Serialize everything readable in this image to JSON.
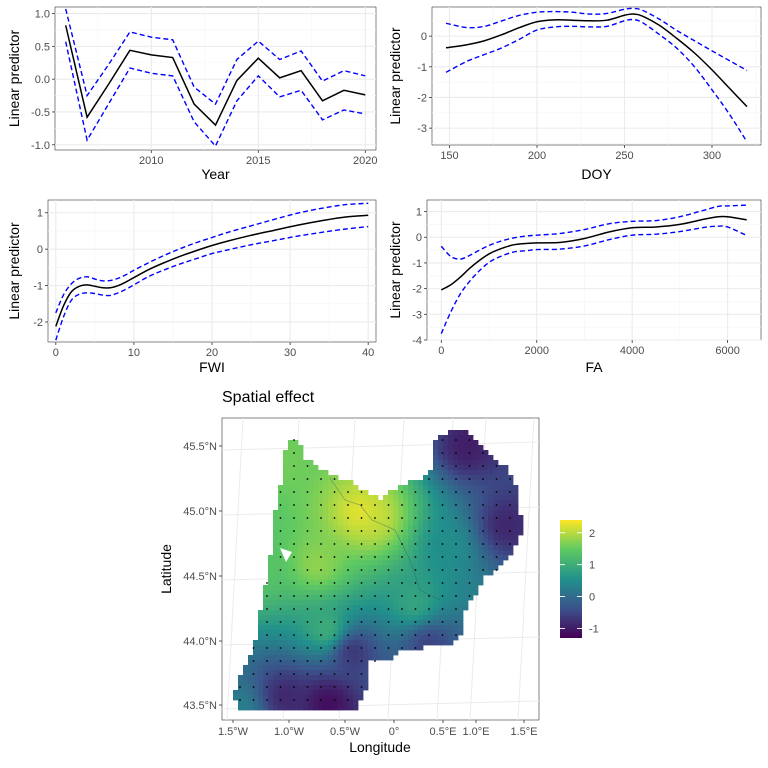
{
  "colors": {
    "estimate": "#000000",
    "interval": "#0000ff",
    "grid_major": "#ebebeb",
    "grid_minor": "#f4f4f4",
    "panel_border": "#333333",
    "viridis": [
      "#440154",
      "#3b528b",
      "#21918c",
      "#5ec962",
      "#fde725"
    ]
  },
  "chart_data": [
    {
      "type": "line",
      "panel": "year",
      "xlabel": "Year",
      "ylabel": "Linear predictor",
      "xlim": [
        2005.5,
        2020.5
      ],
      "ylim": [
        -1.08,
        1.1
      ],
      "xticks": [
        2010,
        2015,
        2020
      ],
      "yticks": [
        -1.0,
        -0.5,
        0.0,
        0.5,
        1.0
      ],
      "ytick_labels": [
        "-1.0",
        "-0.5",
        "0.0",
        "0.5",
        "1.0"
      ],
      "x": [
        2006,
        2007,
        2008,
        2009,
        2010,
        2011,
        2012,
        2013,
        2014,
        2015,
        2016,
        2017,
        2018,
        2019,
        2020
      ],
      "series": [
        {
          "role": "estimate",
          "values": [
            0.82,
            -0.58,
            -0.08,
            0.44,
            0.37,
            0.33,
            -0.38,
            -0.7,
            -0.02,
            0.32,
            0.02,
            0.13,
            -0.33,
            -0.17,
            -0.24
          ]
        },
        {
          "role": "upper",
          "values": [
            1.07,
            -0.25,
            0.22,
            0.72,
            0.64,
            0.6,
            -0.12,
            -0.38,
            0.3,
            0.58,
            0.3,
            0.43,
            -0.03,
            0.13,
            0.05
          ]
        },
        {
          "role": "lower",
          "values": [
            0.57,
            -0.93,
            -0.38,
            0.17,
            0.09,
            0.05,
            -0.65,
            -1.02,
            -0.33,
            0.05,
            -0.27,
            -0.17,
            -0.62,
            -0.47,
            -0.53
          ]
        }
      ]
    },
    {
      "type": "line",
      "panel": "doy",
      "xlabel": "DOY",
      "ylabel": "Linear predictor",
      "xlim": [
        140,
        328
      ],
      "ylim": [
        -3.55,
        0.95
      ],
      "xticks": [
        150,
        200,
        250,
        300
      ],
      "yticks": [
        -3,
        -2,
        -1,
        0
      ],
      "ytick_labels": [
        "-3",
        "-2",
        "-1",
        "0"
      ],
      "x": [
        148,
        160,
        170,
        180,
        190,
        200,
        210,
        220,
        230,
        240,
        250,
        255,
        260,
        270,
        280,
        290,
        300,
        310,
        320
      ],
      "series": [
        {
          "role": "estimate",
          "values": [
            -0.38,
            -0.28,
            -0.15,
            0.05,
            0.28,
            0.47,
            0.53,
            0.52,
            0.5,
            0.52,
            0.68,
            0.72,
            0.66,
            0.35,
            -0.08,
            -0.55,
            -1.1,
            -1.7,
            -2.3
          ]
        },
        {
          "role": "upper",
          "values": [
            0.42,
            0.28,
            0.32,
            0.5,
            0.68,
            0.78,
            0.8,
            0.78,
            0.72,
            0.74,
            0.88,
            0.9,
            0.85,
            0.55,
            0.18,
            -0.15,
            -0.48,
            -0.8,
            -1.12
          ]
        },
        {
          "role": "lower",
          "values": [
            -1.18,
            -0.82,
            -0.6,
            -0.38,
            -0.1,
            0.2,
            0.3,
            0.32,
            0.3,
            0.32,
            0.5,
            0.54,
            0.45,
            0.05,
            -0.4,
            -1.0,
            -1.75,
            -2.55,
            -3.45
          ]
        }
      ]
    },
    {
      "type": "line",
      "panel": "fwi",
      "xlabel": "FWI",
      "ylabel": "Linear predictor",
      "xlim": [
        -1,
        41
      ],
      "ylim": [
        -2.55,
        1.35
      ],
      "xticks": [
        0,
        10,
        20,
        30,
        40
      ],
      "yticks": [
        -2,
        -1,
        0,
        1
      ],
      "ytick_labels": [
        "-2",
        "-1",
        "0",
        "1"
      ],
      "x": [
        0,
        1,
        2,
        3,
        4,
        5,
        6,
        7,
        8,
        9,
        10,
        12,
        14,
        16,
        18,
        20,
        22,
        25,
        28,
        31,
        34,
        37,
        40
      ],
      "series": [
        {
          "role": "estimate",
          "values": [
            -2.12,
            -1.55,
            -1.17,
            -1.02,
            -0.98,
            -1.02,
            -1.06,
            -1.06,
            -1.0,
            -0.9,
            -0.78,
            -0.55,
            -0.36,
            -0.19,
            -0.04,
            0.1,
            0.22,
            0.38,
            0.52,
            0.66,
            0.78,
            0.88,
            0.93
          ]
        },
        {
          "role": "upper",
          "values": [
            -1.75,
            -1.25,
            -0.95,
            -0.8,
            -0.76,
            -0.82,
            -0.87,
            -0.86,
            -0.8,
            -0.7,
            -0.58,
            -0.36,
            -0.16,
            0.02,
            0.18,
            0.32,
            0.46,
            0.64,
            0.82,
            0.99,
            1.12,
            1.22,
            1.26
          ]
        },
        {
          "role": "lower",
          "values": [
            -2.5,
            -1.85,
            -1.4,
            -1.24,
            -1.2,
            -1.22,
            -1.26,
            -1.27,
            -1.2,
            -1.1,
            -0.98,
            -0.74,
            -0.56,
            -0.4,
            -0.26,
            -0.12,
            -0.02,
            0.12,
            0.24,
            0.36,
            0.46,
            0.55,
            0.62
          ]
        }
      ]
    },
    {
      "type": "line",
      "panel": "fa",
      "xlabel": "FA",
      "ylabel": "Linear predictor",
      "xlim": [
        -300,
        6700
      ],
      "ylim": [
        -4.0,
        1.45
      ],
      "xticks": [
        0,
        2000,
        4000,
        6000
      ],
      "yticks": [
        -4,
        -3,
        -2,
        -1,
        0,
        1
      ],
      "ytick_labels": [
        "-4",
        "-3",
        "-2",
        "-1",
        "0",
        "1"
      ],
      "x": [
        0,
        200,
        400,
        600,
        800,
        1000,
        1200,
        1500,
        1800,
        2000,
        2500,
        3000,
        3500,
        4000,
        4500,
        5000,
        5500,
        5800,
        6000,
        6400
      ],
      "series": [
        {
          "role": "estimate",
          "values": [
            -2.05,
            -1.85,
            -1.55,
            -1.2,
            -0.9,
            -0.65,
            -0.48,
            -0.3,
            -0.24,
            -0.22,
            -0.2,
            -0.05,
            0.2,
            0.37,
            0.4,
            0.5,
            0.7,
            0.8,
            0.8,
            0.68
          ]
        },
        {
          "role": "upper",
          "values": [
            -0.35,
            -0.75,
            -0.85,
            -0.7,
            -0.5,
            -0.32,
            -0.18,
            -0.03,
            0.05,
            0.08,
            0.15,
            0.3,
            0.52,
            0.62,
            0.65,
            0.8,
            1.05,
            1.2,
            1.22,
            1.25
          ]
        },
        {
          "role": "lower",
          "values": [
            -3.75,
            -2.9,
            -2.2,
            -1.7,
            -1.3,
            -0.98,
            -0.78,
            -0.58,
            -0.52,
            -0.48,
            -0.46,
            -0.34,
            -0.1,
            0.08,
            0.12,
            0.22,
            0.38,
            0.43,
            0.4,
            0.07
          ]
        }
      ]
    },
    {
      "type": "heatmap",
      "panel": "spatial",
      "title": "Spatial effect",
      "xlabel": "Longitude",
      "ylabel": "Latitude",
      "lon_range": [
        -1.65,
        1.65
      ],
      "lat_range": [
        43.42,
        45.72
      ],
      "lon_ticks": [
        "1.5°W",
        "1.0°W",
        "0.5°W",
        "0°",
        "0.5°E",
        "1.0°E",
        "1.5°E"
      ],
      "lat_ticks": [
        "43.5°N",
        "44.0°N",
        "44.5°N",
        "45.0°N",
        "45.5°N"
      ],
      "legend": {
        "position": "right",
        "range": [
          -1.3,
          2.4
        ],
        "ticks": [
          2,
          1,
          0,
          -1
        ],
        "tick_labels": [
          "2",
          "1",
          "0",
          "-1"
        ]
      },
      "hotspots": [
        {
          "lon": -0.2,
          "lat": 45.0,
          "value": 2.3
        },
        {
          "lon": -0.05,
          "lat": 44.95,
          "value": 2.1
        },
        {
          "lon": -0.65,
          "lat": 44.6,
          "value": 1.8
        },
        {
          "lon": -1.05,
          "lat": 45.4,
          "value": 1.6
        },
        {
          "lon": -1.3,
          "lat": 44.55,
          "value": 1.4
        },
        {
          "lon": -0.55,
          "lat": 44.1,
          "value": 1.1
        },
        {
          "lon": 0.35,
          "lat": 44.3,
          "value": 0.9
        },
        {
          "lon": 0.7,
          "lat": 44.75,
          "value": 0.5
        },
        {
          "lon": -0.55,
          "lat": 43.55,
          "value": -1.2
        },
        {
          "lon": -1.0,
          "lat": 43.6,
          "value": -0.9
        },
        {
          "lon": 0.9,
          "lat": 45.5,
          "value": -1.0
        },
        {
          "lon": 1.3,
          "lat": 44.9,
          "value": -0.9
        },
        {
          "lon": -0.3,
          "lat": 43.95,
          "value": -0.8
        },
        {
          "lon": 0.5,
          "lat": 44.0,
          "value": -0.6
        },
        {
          "lon": -1.45,
          "lat": 43.5,
          "value": 0.3
        }
      ]
    }
  ]
}
